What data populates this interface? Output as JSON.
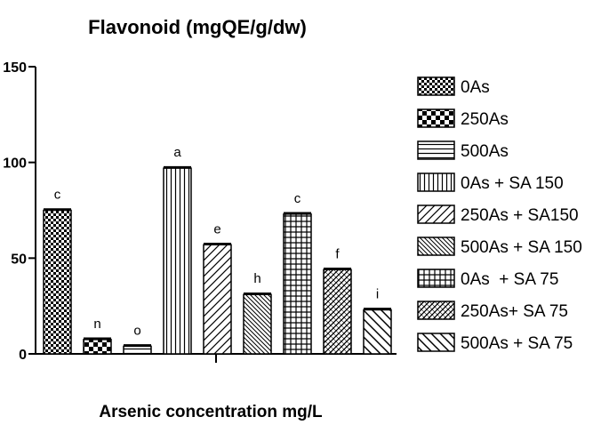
{
  "chart_data": {
    "type": "bar",
    "title": "Flavonoid (mgQE/g/dw)",
    "xlabel": "Arsenic concentration mg/L",
    "ylabel": "",
    "ylim": [
      0,
      150
    ],
    "yticks": [
      "0",
      "50",
      "100",
      "150"
    ],
    "categories": [
      "0As",
      "250As",
      "500As",
      "0As + SA 150",
      "250As + SA150",
      "500As + SA 150",
      "0As  + SA 75",
      "250As+ SA 75",
      "500As + SA 75"
    ],
    "values": [
      75,
      7.5,
      4,
      97,
      57,
      31,
      73,
      44,
      23
    ],
    "significance": [
      "c",
      "n",
      "o",
      "a",
      "e",
      "h",
      "c",
      "f",
      "i"
    ],
    "patterns": [
      "dense-checker",
      "big-checker",
      "horizontal",
      "vertical",
      "diag-up",
      "diag-down-dense",
      "grid",
      "diag-up-dense",
      "diag-down"
    ],
    "legend_placement": "right",
    "grid": false
  }
}
